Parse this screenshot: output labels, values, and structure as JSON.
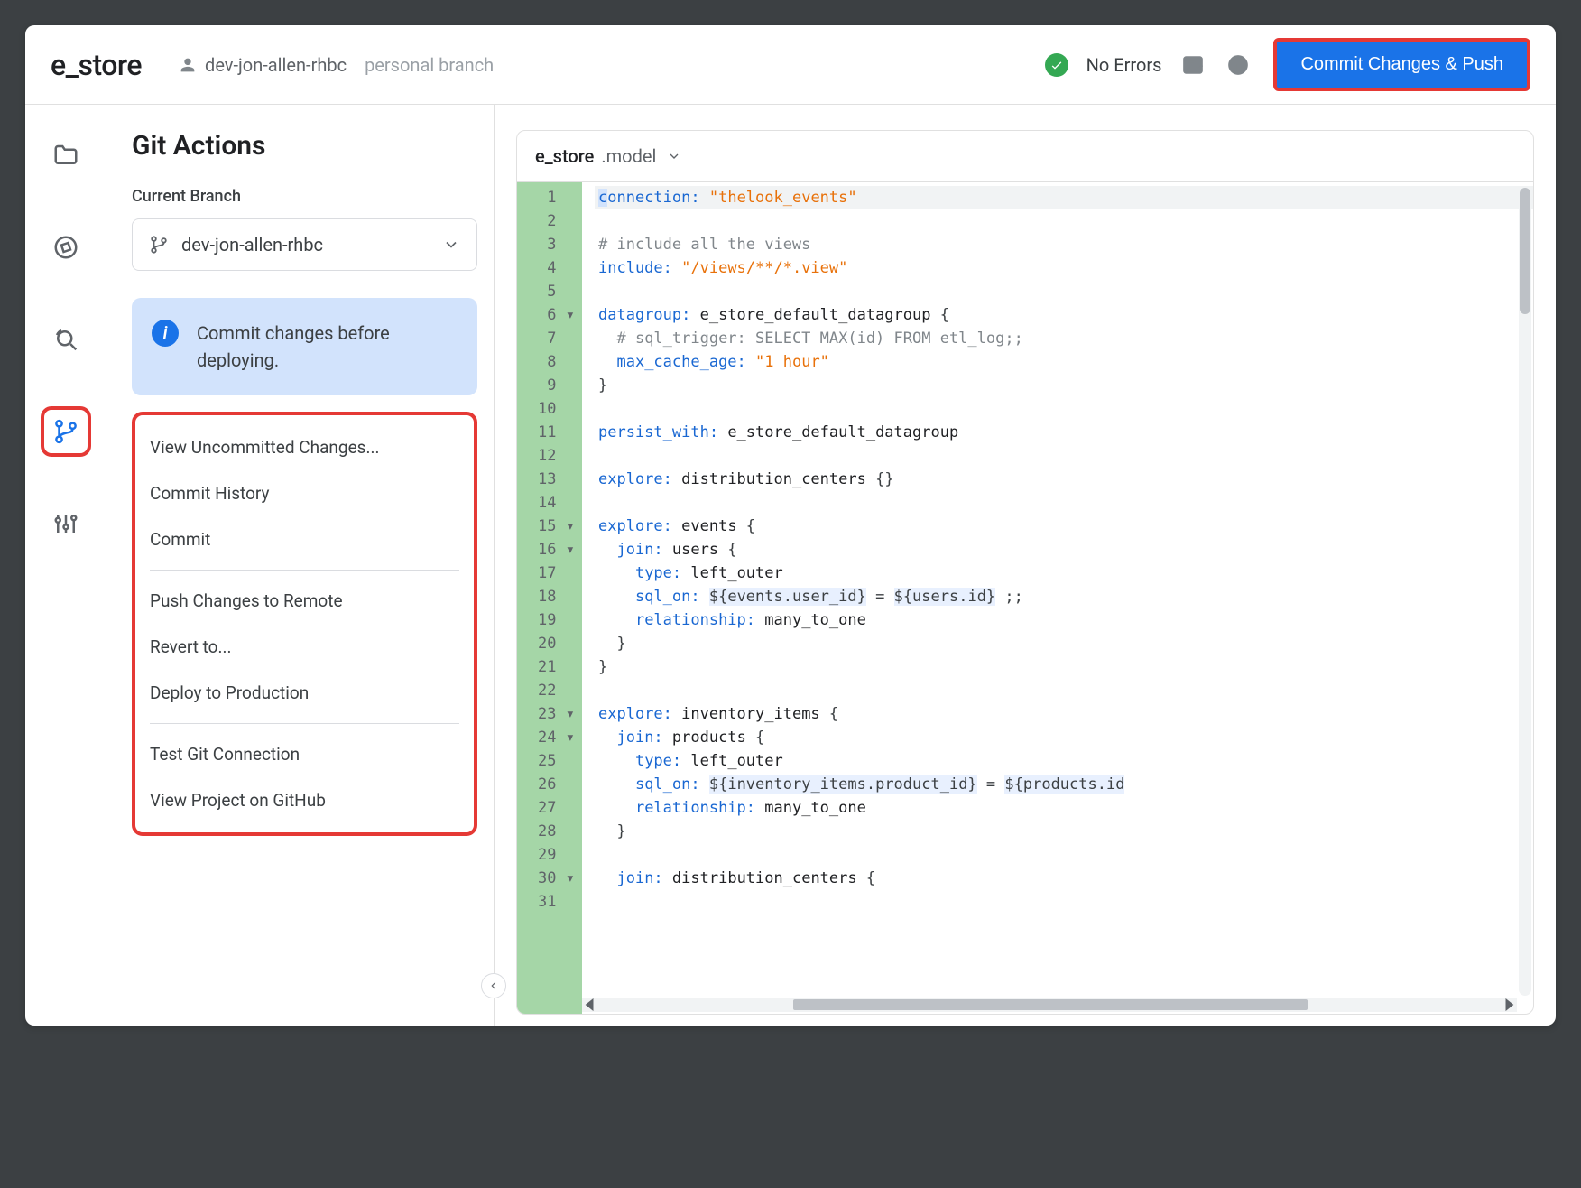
{
  "header": {
    "project_name": "e_store",
    "branch_user": "dev-jon-allen-rhbc",
    "branch_desc": "personal branch",
    "status_text": "No Errors",
    "commit_btn": "Commit Changes & Push"
  },
  "colors": {
    "primary": "#1a73e8",
    "highlight_border": "#e53935",
    "success": "#34a853",
    "banner_bg": "#d2e3fc",
    "gutter_bg": "#a5d6a7"
  },
  "side_panel": {
    "title": "Git Actions",
    "section_label": "Current Branch",
    "branch_value": "dev-jon-allen-rhbc",
    "banner_text": "Commit changes before deploying.",
    "actions_group1": [
      "View Uncommitted Changes...",
      "Commit History",
      "Commit"
    ],
    "actions_group2": [
      "Push Changes to Remote",
      "Revert to...",
      "Deploy to Production"
    ],
    "actions_group3": [
      "Test Git Connection",
      "View Project on GitHub"
    ]
  },
  "editor": {
    "file_name": "e_store",
    "file_ext": ".model",
    "line_count": 31,
    "fold_lines": [
      6,
      15,
      16,
      23,
      24,
      30
    ],
    "code_lines": [
      {
        "n": 1,
        "html": "<span class='kw hl2'>c</span><span class='kw'>onnection:</span> <span class='str'>\"thelook_events\"</span>",
        "active": true
      },
      {
        "n": 2,
        "html": ""
      },
      {
        "n": 3,
        "html": "<span class='com'># include all the views</span>"
      },
      {
        "n": 4,
        "html": "<span class='kw'>include:</span> <span class='str'>\"/views/**/*.view\"</span>"
      },
      {
        "n": 5,
        "html": ""
      },
      {
        "n": 6,
        "html": "<span class='kw'>datagroup:</span> <span class='fn'>e_store_default_datagroup</span> {"
      },
      {
        "n": 7,
        "html": "  <span class='com'># sql_trigger: SELECT MAX(id) FROM etl_log;;</span>"
      },
      {
        "n": 8,
        "html": "  <span class='kw'>max_cache_age:</span> <span class='str'>\"1 hour\"</span>"
      },
      {
        "n": 9,
        "html": "}"
      },
      {
        "n": 10,
        "html": ""
      },
      {
        "n": 11,
        "html": "<span class='kw'>persist_with:</span> <span class='fn'>e_store_default_datagroup</span>"
      },
      {
        "n": 12,
        "html": ""
      },
      {
        "n": 13,
        "html": "<span class='kw'>explore:</span> <span class='fn'>distribution_centers</span> {}"
      },
      {
        "n": 14,
        "html": ""
      },
      {
        "n": 15,
        "html": "<span class='kw'>explore:</span> <span class='fn'>events</span> {"
      },
      {
        "n": 16,
        "html": "  <span class='kw'>join:</span> <span class='fn'>users</span> {"
      },
      {
        "n": 17,
        "html": "    <span class='kw'>type:</span> <span class='fn'>left_outer</span>"
      },
      {
        "n": 18,
        "html": "    <span class='kw'>sql_on:</span> <span class='hl'>${events.user_id}</span> = <span class='hl'>${users.id}</span> ;;"
      },
      {
        "n": 19,
        "html": "    <span class='kw'>relationship:</span> <span class='fn'>many_to_one</span>"
      },
      {
        "n": 20,
        "html": "  }"
      },
      {
        "n": 21,
        "html": "}"
      },
      {
        "n": 22,
        "html": ""
      },
      {
        "n": 23,
        "html": "<span class='kw'>explore:</span> <span class='fn'>inventory_items</span> {"
      },
      {
        "n": 24,
        "html": "  <span class='kw'>join:</span> <span class='fn'>products</span> {"
      },
      {
        "n": 25,
        "html": "    <span class='kw'>type:</span> <span class='fn'>left_outer</span>"
      },
      {
        "n": 26,
        "html": "    <span class='kw'>sql_on:</span> <span class='hl'>${inventory_items.product_id}</span> = <span class='hl'>${products.id</span>"
      },
      {
        "n": 27,
        "html": "    <span class='kw'>relationship:</span> <span class='fn'>many_to_one</span>"
      },
      {
        "n": 28,
        "html": "  }"
      },
      {
        "n": 29,
        "html": ""
      },
      {
        "n": 30,
        "html": "  <span class='kw'>join:</span> <span class='fn'>distribution_centers</span> {"
      },
      {
        "n": 31,
        "html": ""
      }
    ]
  }
}
